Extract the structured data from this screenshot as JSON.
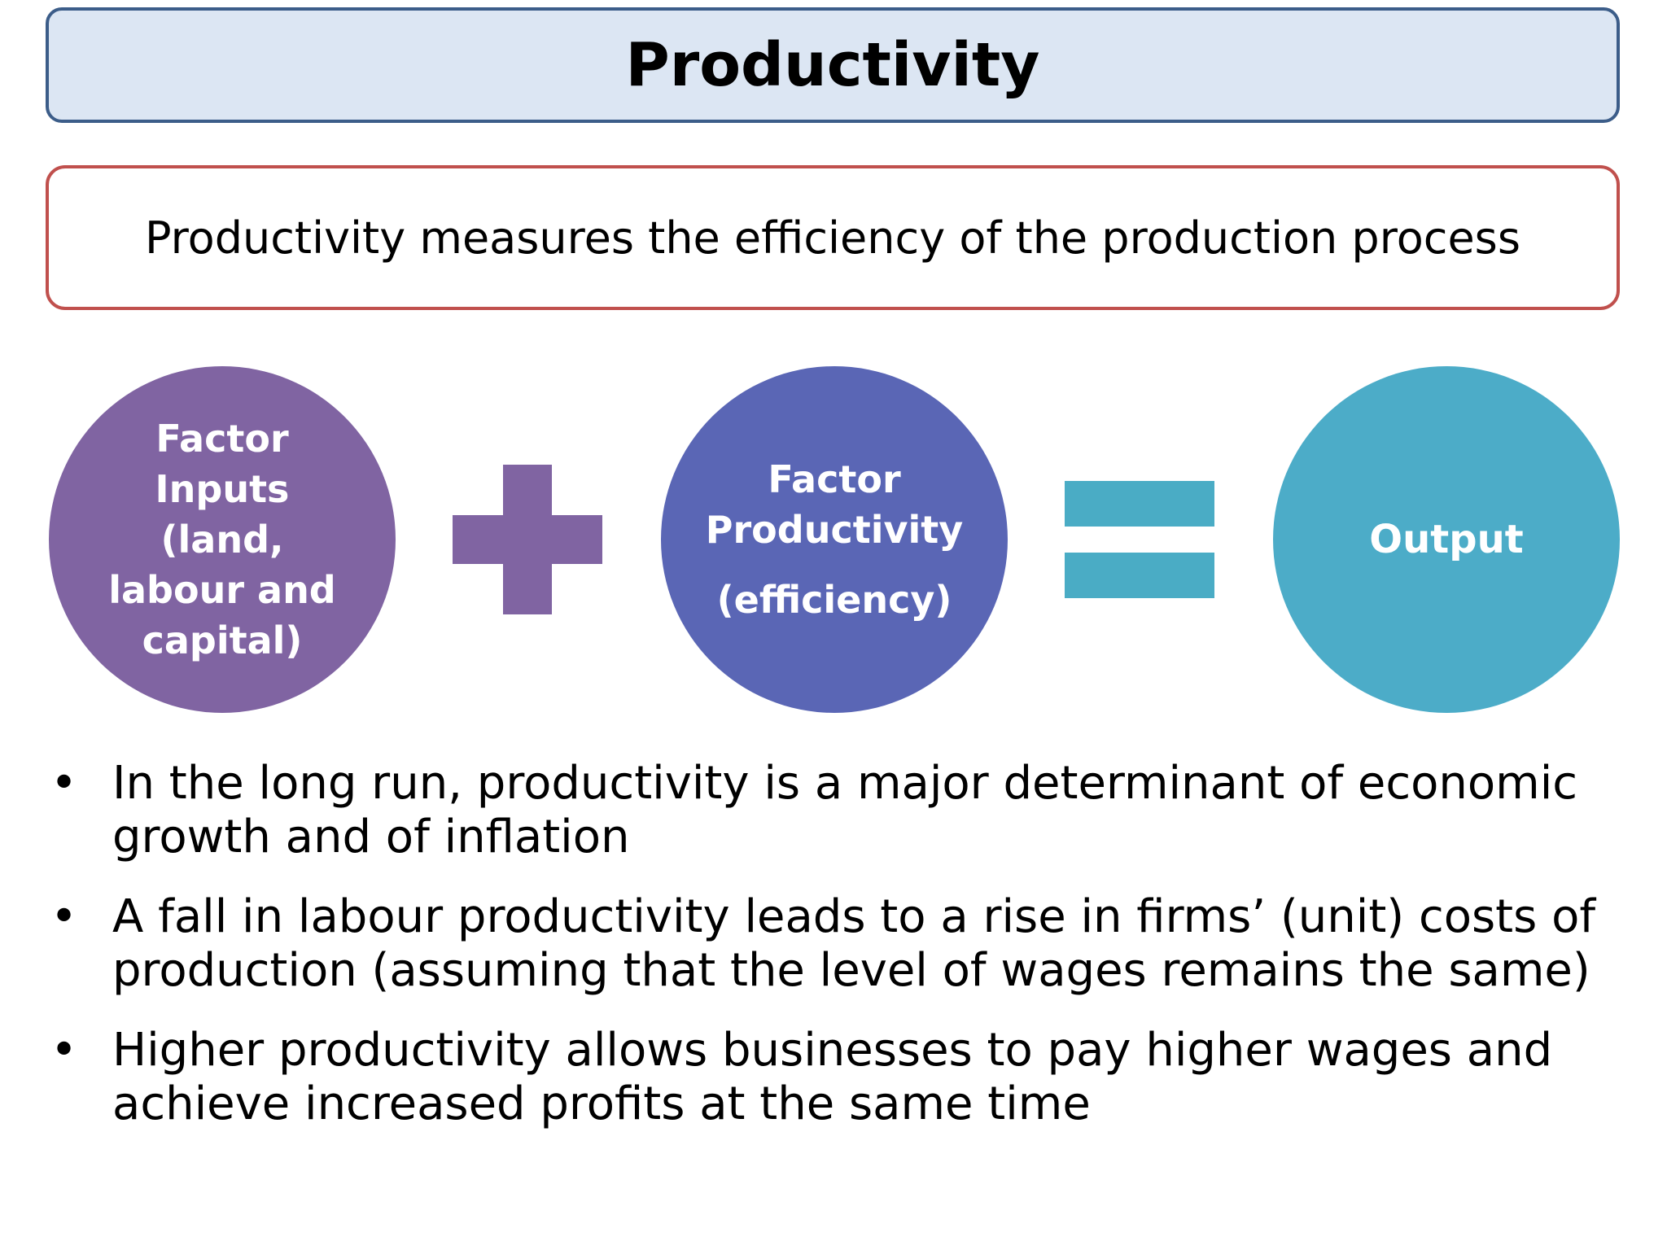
{
  "title": "Productivity",
  "definition": "Productivity measures the efficiency of the production process",
  "equation": {
    "inputs": "Factor Inputs (land, labour and capital)",
    "productivity_line1": "Factor Productivity",
    "productivity_line2": "(efficiency)",
    "output": "Output"
  },
  "bullets": [
    "In the long run, productivity is a major determinant of  economic growth and of inflation",
    "A fall in labour productivity leads to a rise in firms’ (unit) costs of production (assuming that the level of wages remains the same)",
    "Higher productivity allows businesses to pay higher wages and achieve increased profits at the same time"
  ],
  "bullet_symbol": "•",
  "colors": {
    "title_fill": "#dce6f3",
    "title_border": "#3c5d89",
    "definition_border": "#c0504d",
    "inputs_circle": "#8064a2",
    "productivity_circle": "#5a66b5",
    "output_circle": "#4cacc8",
    "plus_sign": "#8064a2",
    "equals_sign": "#4aacc5"
  }
}
